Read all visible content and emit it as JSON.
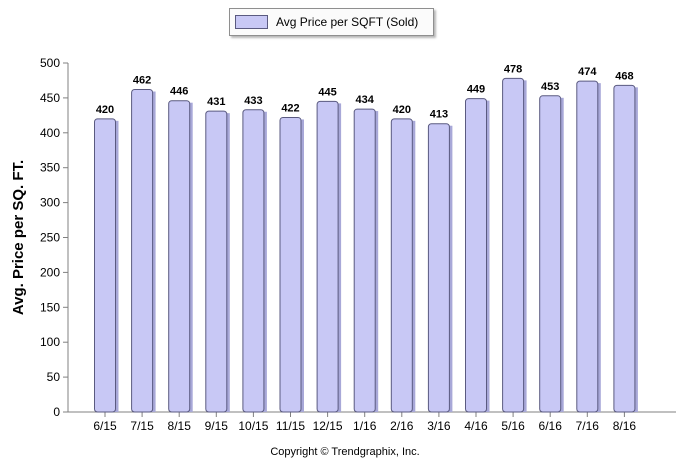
{
  "chart_data": {
    "type": "bar",
    "categories": [
      "6/15",
      "7/15",
      "8/15",
      "9/15",
      "10/15",
      "11/15",
      "12/15",
      "1/16",
      "2/16",
      "3/16",
      "4/16",
      "5/16",
      "6/16",
      "7/16",
      "8/16"
    ],
    "series": [
      {
        "name": "Avg Price per SQFT (Sold)",
        "values": [
          420,
          462,
          446,
          431,
          433,
          422,
          445,
          434,
          420,
          413,
          449,
          478,
          453,
          474,
          468
        ]
      }
    ],
    "ylabel": "Avg. Price per SQ. FT.",
    "xlabel": "",
    "ylim": [
      0,
      500
    ],
    "yticks": [
      0,
      50,
      100,
      150,
      200,
      250,
      300,
      350,
      400,
      450,
      500
    ],
    "grid": false,
    "legend_position": "top-center",
    "data_labels": true,
    "colors": {
      "bar_fill": "#c8c8f5",
      "bar_stroke": "#5a5a80",
      "bar_side": "#a8a8d8"
    }
  },
  "footer": {
    "copyright": "Copyright © Trendgraphix, Inc."
  }
}
